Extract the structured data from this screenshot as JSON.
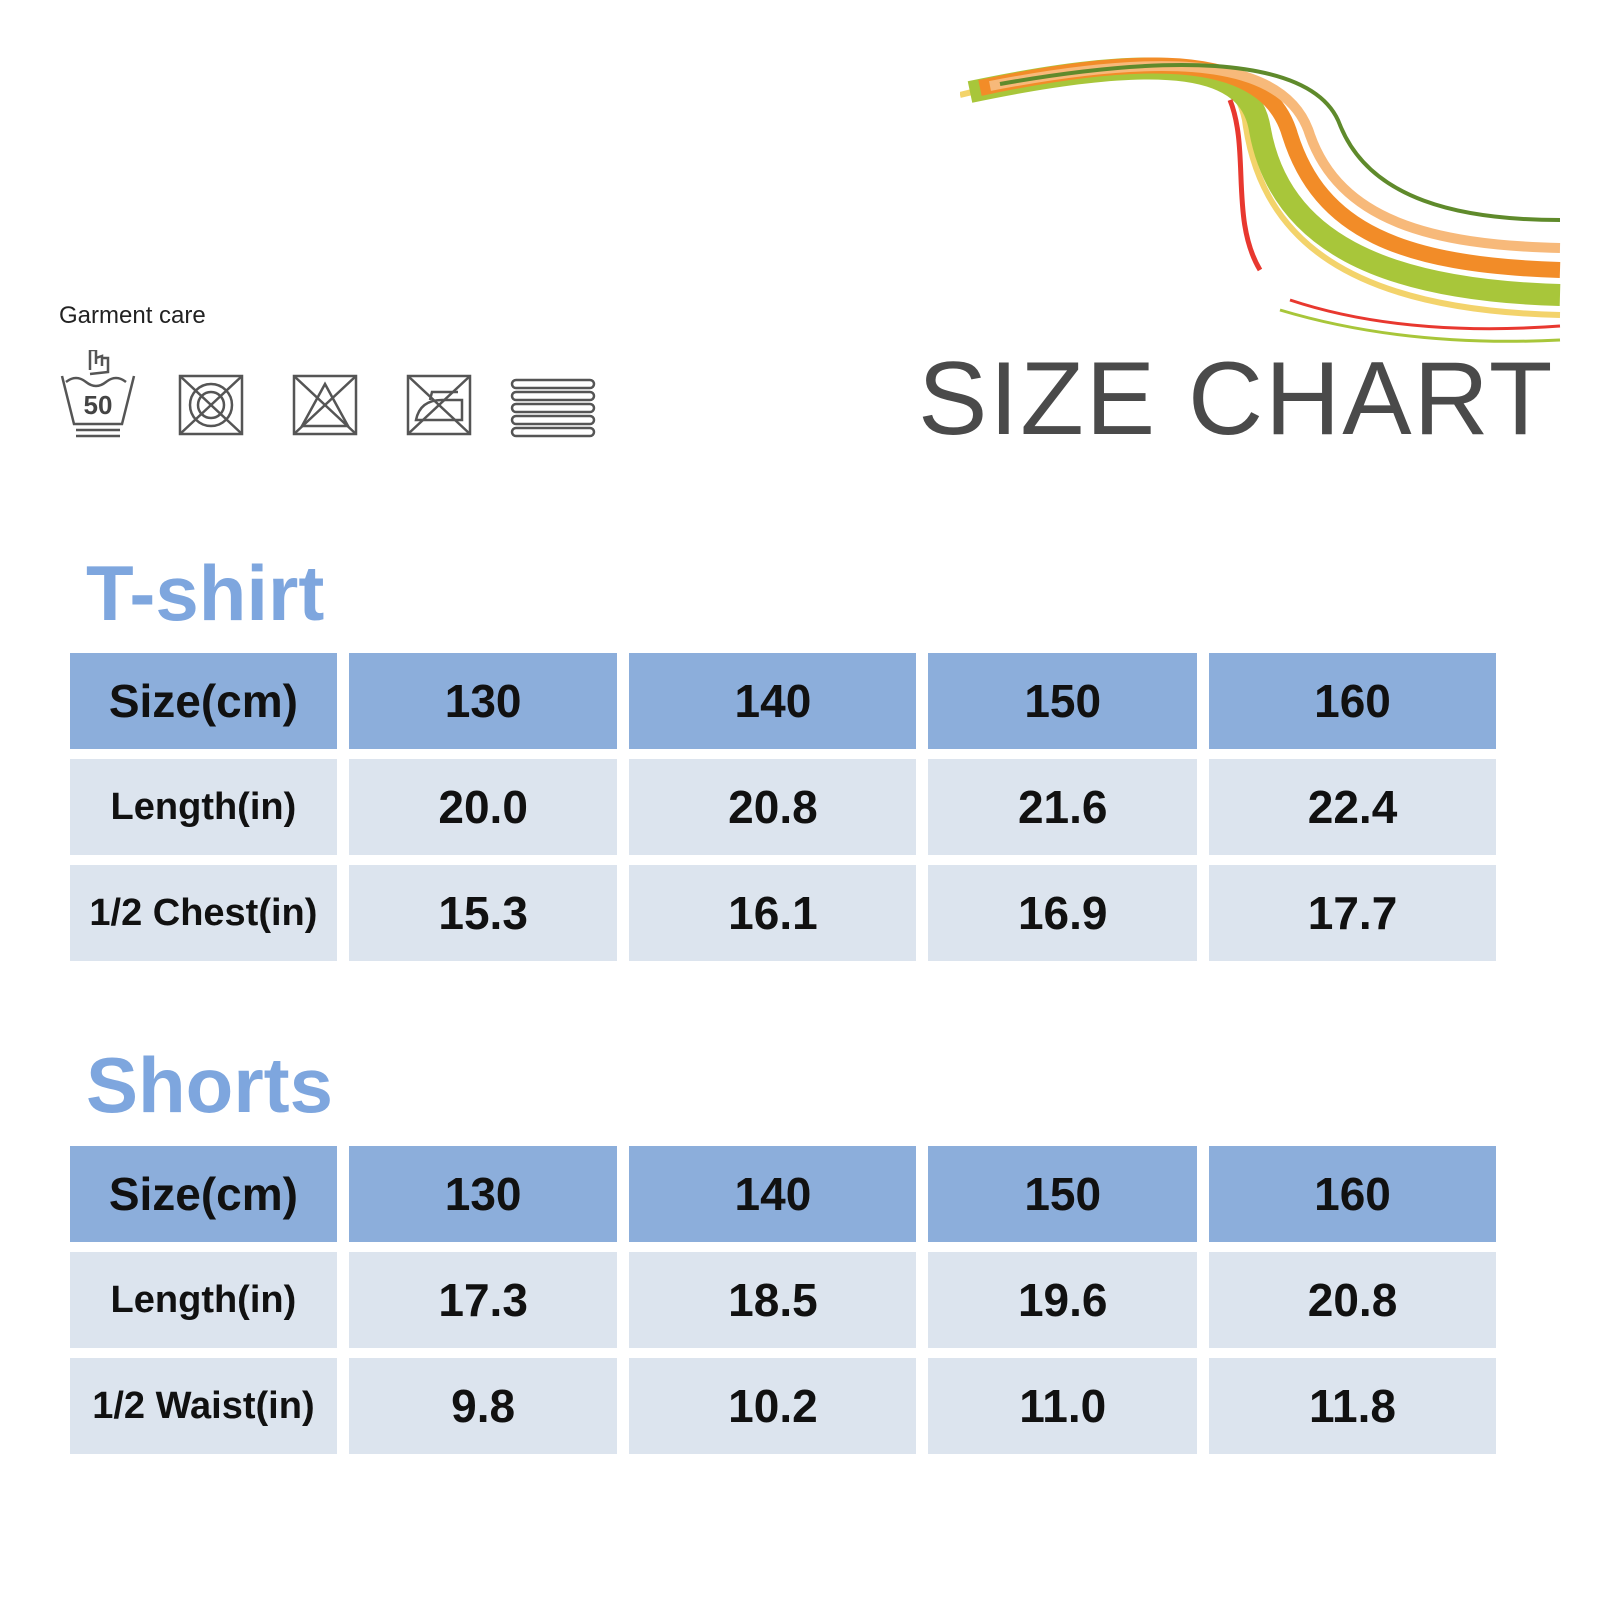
{
  "care": {
    "label": "Garment care",
    "icons": [
      "hand-wash-50-icon",
      "no-tumble-dry-icon",
      "no-bleach-icon",
      "no-iron-icon",
      "dry-flat-icon"
    ],
    "wash_temp": "50"
  },
  "header": {
    "title": "SIZE CHART",
    "swoosh_colors": [
      "#f28c28",
      "#a8c63a",
      "#e8382f",
      "#f7b97a",
      "#5f8a2b",
      "#f3d36b"
    ]
  },
  "tshirt": {
    "title": "T-shirt",
    "header": [
      "Size(cm)",
      "130",
      "140",
      "150",
      "160"
    ],
    "rows": [
      [
        "Length(in)",
        "20.0",
        "20.8",
        "21.6",
        "22.4"
      ],
      [
        "1/2 Chest(in)",
        "15.3",
        "16.1",
        "16.9",
        "17.7"
      ]
    ]
  },
  "shorts": {
    "title": "Shorts",
    "header": [
      "Size(cm)",
      "130",
      "140",
      "150",
      "160"
    ],
    "rows": [
      [
        "Length(in)",
        "17.3",
        "18.5",
        "19.6",
        "20.8"
      ],
      [
        "1/2 Waist(in)",
        "9.8",
        "10.2",
        "11.0",
        "11.8"
      ]
    ]
  },
  "colors": {
    "header_cell": "#8caedb",
    "body_cell": "#dce4ee",
    "section_title": "#7ea6de"
  }
}
